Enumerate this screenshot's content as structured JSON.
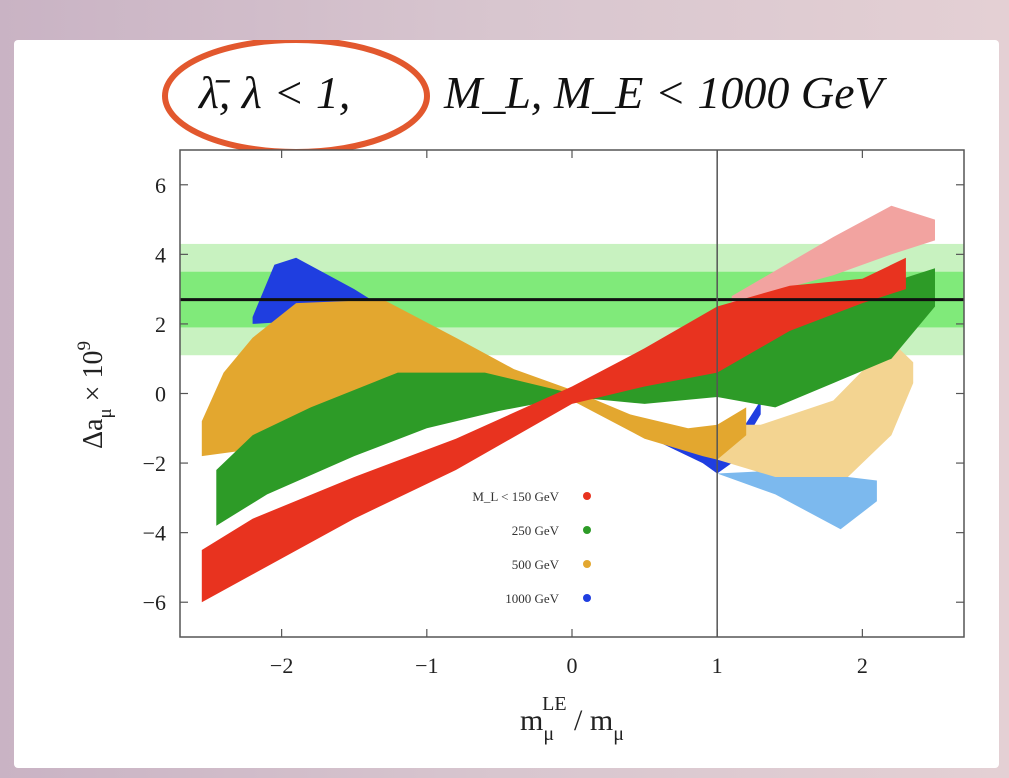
{
  "chart_data": {
    "type": "scatter",
    "title": {
      "lhs": "λ̄, λ < 1,",
      "rhs": "M_L, M_E < 1000 GeV"
    },
    "xlabel": {
      "base": "m",
      "sub": "μ",
      "sup": "LE",
      "tail": " / m",
      "tail_sub": "μ"
    },
    "ylabel": {
      "base": "Δa",
      "sub": "μ",
      "tail": " × 10",
      "sup": "9"
    },
    "xlim": [
      -2.7,
      2.7
    ],
    "ylim": [
      -7,
      7
    ],
    "xticks": [
      -2,
      -1,
      0,
      1,
      2
    ],
    "xtick_labels": [
      "−2",
      "−1",
      "0",
      "1",
      "2"
    ],
    "yticks": [
      -6,
      -4,
      -2,
      0,
      2,
      4,
      6
    ],
    "ytick_labels": [
      "−6",
      "−4",
      "−2",
      "0",
      "2",
      "4",
      "6"
    ],
    "reference_line": {
      "y": 2.7
    },
    "vertical_line": {
      "x": 1
    },
    "bands": [
      {
        "y": [
          1.1,
          4.3
        ],
        "color": "#c8f2c0"
      },
      {
        "y": [
          1.9,
          3.5
        ],
        "color": "#80ea7a"
      }
    ],
    "legend": {
      "position": "inside-bottom-center",
      "entries": [
        {
          "label": "M_L < 150 GeV",
          "color": "#e8331f"
        },
        {
          "label": "250 GeV",
          "color": "#2d9b27"
        },
        {
          "label": "500 GeV",
          "color": "#e3a72f"
        },
        {
          "label": "1000 GeV",
          "color": "#1f3ee0"
        }
      ]
    },
    "series": [
      {
        "name": "1000 GeV",
        "color": "#1f3ee0",
        "light_color": "#7cb9ee",
        "upper": [
          [
            -2.2,
            2.2
          ],
          [
            -2.05,
            3.7
          ],
          [
            -1.9,
            3.9
          ],
          [
            -1.5,
            3.0
          ],
          [
            -1.0,
            1.7
          ],
          [
            -0.5,
            0.8
          ],
          [
            0.0,
            0.0
          ],
          [
            0.5,
            -0.9
          ],
          [
            0.9,
            -1.7
          ],
          [
            1.0,
            -1.9
          ],
          [
            1.1,
            -1.5
          ],
          [
            1.3,
            -0.2
          ]
        ],
        "lower": [
          [
            -2.2,
            2.0
          ],
          [
            -1.8,
            2.1
          ],
          [
            -1.0,
            1.4
          ],
          [
            -0.5,
            0.6
          ],
          [
            0.0,
            -0.1
          ],
          [
            0.5,
            -1.2
          ],
          [
            0.9,
            -2.0
          ],
          [
            1.0,
            -2.3
          ],
          [
            1.1,
            -2.0
          ],
          [
            1.3,
            -0.6
          ]
        ],
        "light_upper": [
          [
            1.0,
            -2.3
          ],
          [
            1.5,
            -2.2
          ],
          [
            2.1,
            -2.5
          ]
        ],
        "light_lower": [
          [
            1.0,
            -2.3
          ],
          [
            1.4,
            -2.9
          ],
          [
            1.85,
            -3.9
          ],
          [
            2.1,
            -3.1
          ]
        ]
      },
      {
        "name": "500 GeV",
        "color": "#e3a72f",
        "light_color": "#f3d491",
        "upper": [
          [
            -2.55,
            -0.8
          ],
          [
            -2.4,
            0.6
          ],
          [
            -2.2,
            1.6
          ],
          [
            -1.9,
            2.6
          ],
          [
            -1.3,
            2.7
          ],
          [
            -0.8,
            1.6
          ],
          [
            -0.4,
            0.7
          ],
          [
            0.0,
            0.1
          ],
          [
            0.4,
            -0.6
          ],
          [
            0.8,
            -1.0
          ],
          [
            1.0,
            -0.9
          ],
          [
            1.2,
            -0.4
          ]
        ],
        "lower": [
          [
            -2.55,
            -1.8
          ],
          [
            -2.2,
            -1.6
          ],
          [
            -1.5,
            -0.8
          ],
          [
            -1.0,
            -0.3
          ],
          [
            -0.5,
            0.0
          ],
          [
            0.0,
            -0.2
          ],
          [
            0.5,
            -1.3
          ],
          [
            0.9,
            -1.8
          ],
          [
            1.0,
            -1.9
          ],
          [
            1.2,
            -1.2
          ]
        ],
        "light_upper": [
          [
            1.0,
            -0.9
          ],
          [
            1.3,
            -0.9
          ],
          [
            1.8,
            -0.2
          ],
          [
            2.2,
            1.5
          ],
          [
            2.35,
            0.9
          ]
        ],
        "light_lower": [
          [
            1.0,
            -1.9
          ],
          [
            1.4,
            -2.4
          ],
          [
            1.9,
            -2.4
          ],
          [
            2.2,
            -1.2
          ],
          [
            2.35,
            0.3
          ]
        ]
      },
      {
        "name": "250 GeV",
        "color": "#2d9b27",
        "light_color": "#8fd68a",
        "upper": [
          [
            -2.45,
            -2.2
          ],
          [
            -2.2,
            -1.2
          ],
          [
            -1.8,
            -0.4
          ],
          [
            -1.2,
            0.6
          ],
          [
            -0.6,
            0.6
          ],
          [
            0.0,
            0.0
          ],
          [
            0.5,
            0.5
          ],
          [
            1.0,
            1.3
          ],
          [
            1.4,
            1.7
          ],
          [
            1.8,
            2.4
          ],
          [
            2.2,
            3.2
          ],
          [
            2.5,
            3.6
          ]
        ],
        "lower": [
          [
            -2.45,
            -3.8
          ],
          [
            -2.1,
            -2.9
          ],
          [
            -1.5,
            -1.8
          ],
          [
            -1.0,
            -1.0
          ],
          [
            -0.5,
            -0.5
          ],
          [
            0.0,
            -0.1
          ],
          [
            0.5,
            -0.3
          ],
          [
            1.0,
            -0.1
          ],
          [
            1.4,
            -0.4
          ],
          [
            1.8,
            0.3
          ],
          [
            2.2,
            1.0
          ],
          [
            2.5,
            2.5
          ]
        ],
        "light_upper": [],
        "light_lower": []
      },
      {
        "name": "M_L < 150 GeV",
        "color": "#e8331f",
        "light_color": "#f2a3a0",
        "upper": [
          [
            -2.55,
            -4.5
          ],
          [
            -2.2,
            -3.6
          ],
          [
            -1.5,
            -2.4
          ],
          [
            -0.8,
            -1.3
          ],
          [
            0.0,
            0.2
          ],
          [
            0.5,
            1.3
          ],
          [
            1.0,
            2.5
          ],
          [
            1.5,
            3.1
          ],
          [
            2.0,
            3.3
          ],
          [
            2.3,
            3.9
          ]
        ],
        "lower": [
          [
            -2.55,
            -6.0
          ],
          [
            -2.2,
            -5.2
          ],
          [
            -1.5,
            -3.6
          ],
          [
            -0.8,
            -2.2
          ],
          [
            0.0,
            -0.3
          ],
          [
            0.5,
            0.2
          ],
          [
            1.0,
            0.6
          ],
          [
            1.5,
            1.8
          ],
          [
            2.0,
            2.6
          ],
          [
            2.3,
            3.0
          ]
        ],
        "light_upper": [
          [
            1.1,
            2.8
          ],
          [
            1.8,
            4.5
          ],
          [
            2.2,
            5.4
          ],
          [
            2.5,
            5.0
          ]
        ],
        "light_lower": [
          [
            1.1,
            2.6
          ],
          [
            1.8,
            3.4
          ],
          [
            2.2,
            4.0
          ],
          [
            2.5,
            4.4
          ]
        ]
      }
    ]
  }
}
